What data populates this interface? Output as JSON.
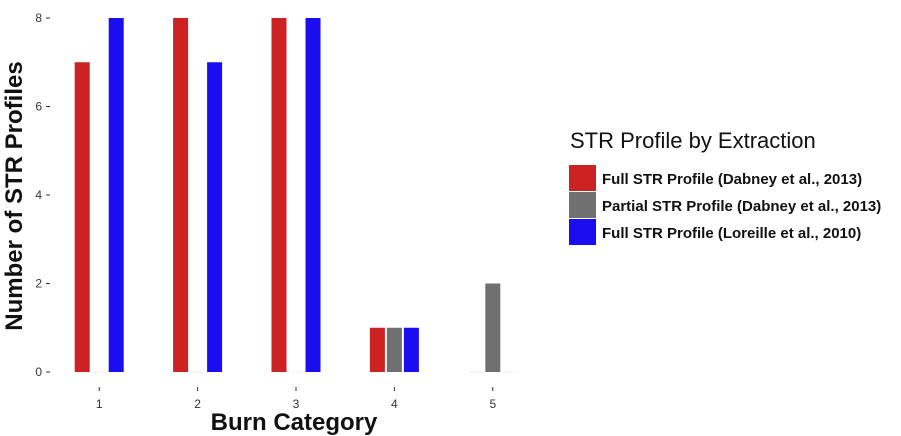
{
  "chart_data": {
    "type": "bar",
    "title": "",
    "xlabel": "Burn Category",
    "ylabel": "Number of STR Profiles",
    "categories": [
      "1",
      "2",
      "3",
      "4",
      "5"
    ],
    "yticks": [
      "0",
      "2",
      "4",
      "6",
      "8"
    ],
    "ylim": [
      0,
      8
    ],
    "grid": false,
    "legend": {
      "title": "STR Profile by Extraction",
      "placement": "right"
    },
    "series": [
      {
        "name": "Full STR Profile (Dabney et al., 2013)",
        "color": "#cc2222",
        "values": [
          7,
          8,
          8,
          1,
          0
        ]
      },
      {
        "name": "Partial STR Profile (Dabney et al., 2013)",
        "color": "#707070",
        "values": [
          0,
          0,
          0,
          1,
          2
        ]
      },
      {
        "name": "Full STR Profile (Loreille et al., 2010)",
        "color": "#1a0ef0",
        "values": [
          8,
          7,
          8,
          1,
          0
        ]
      }
    ]
  }
}
